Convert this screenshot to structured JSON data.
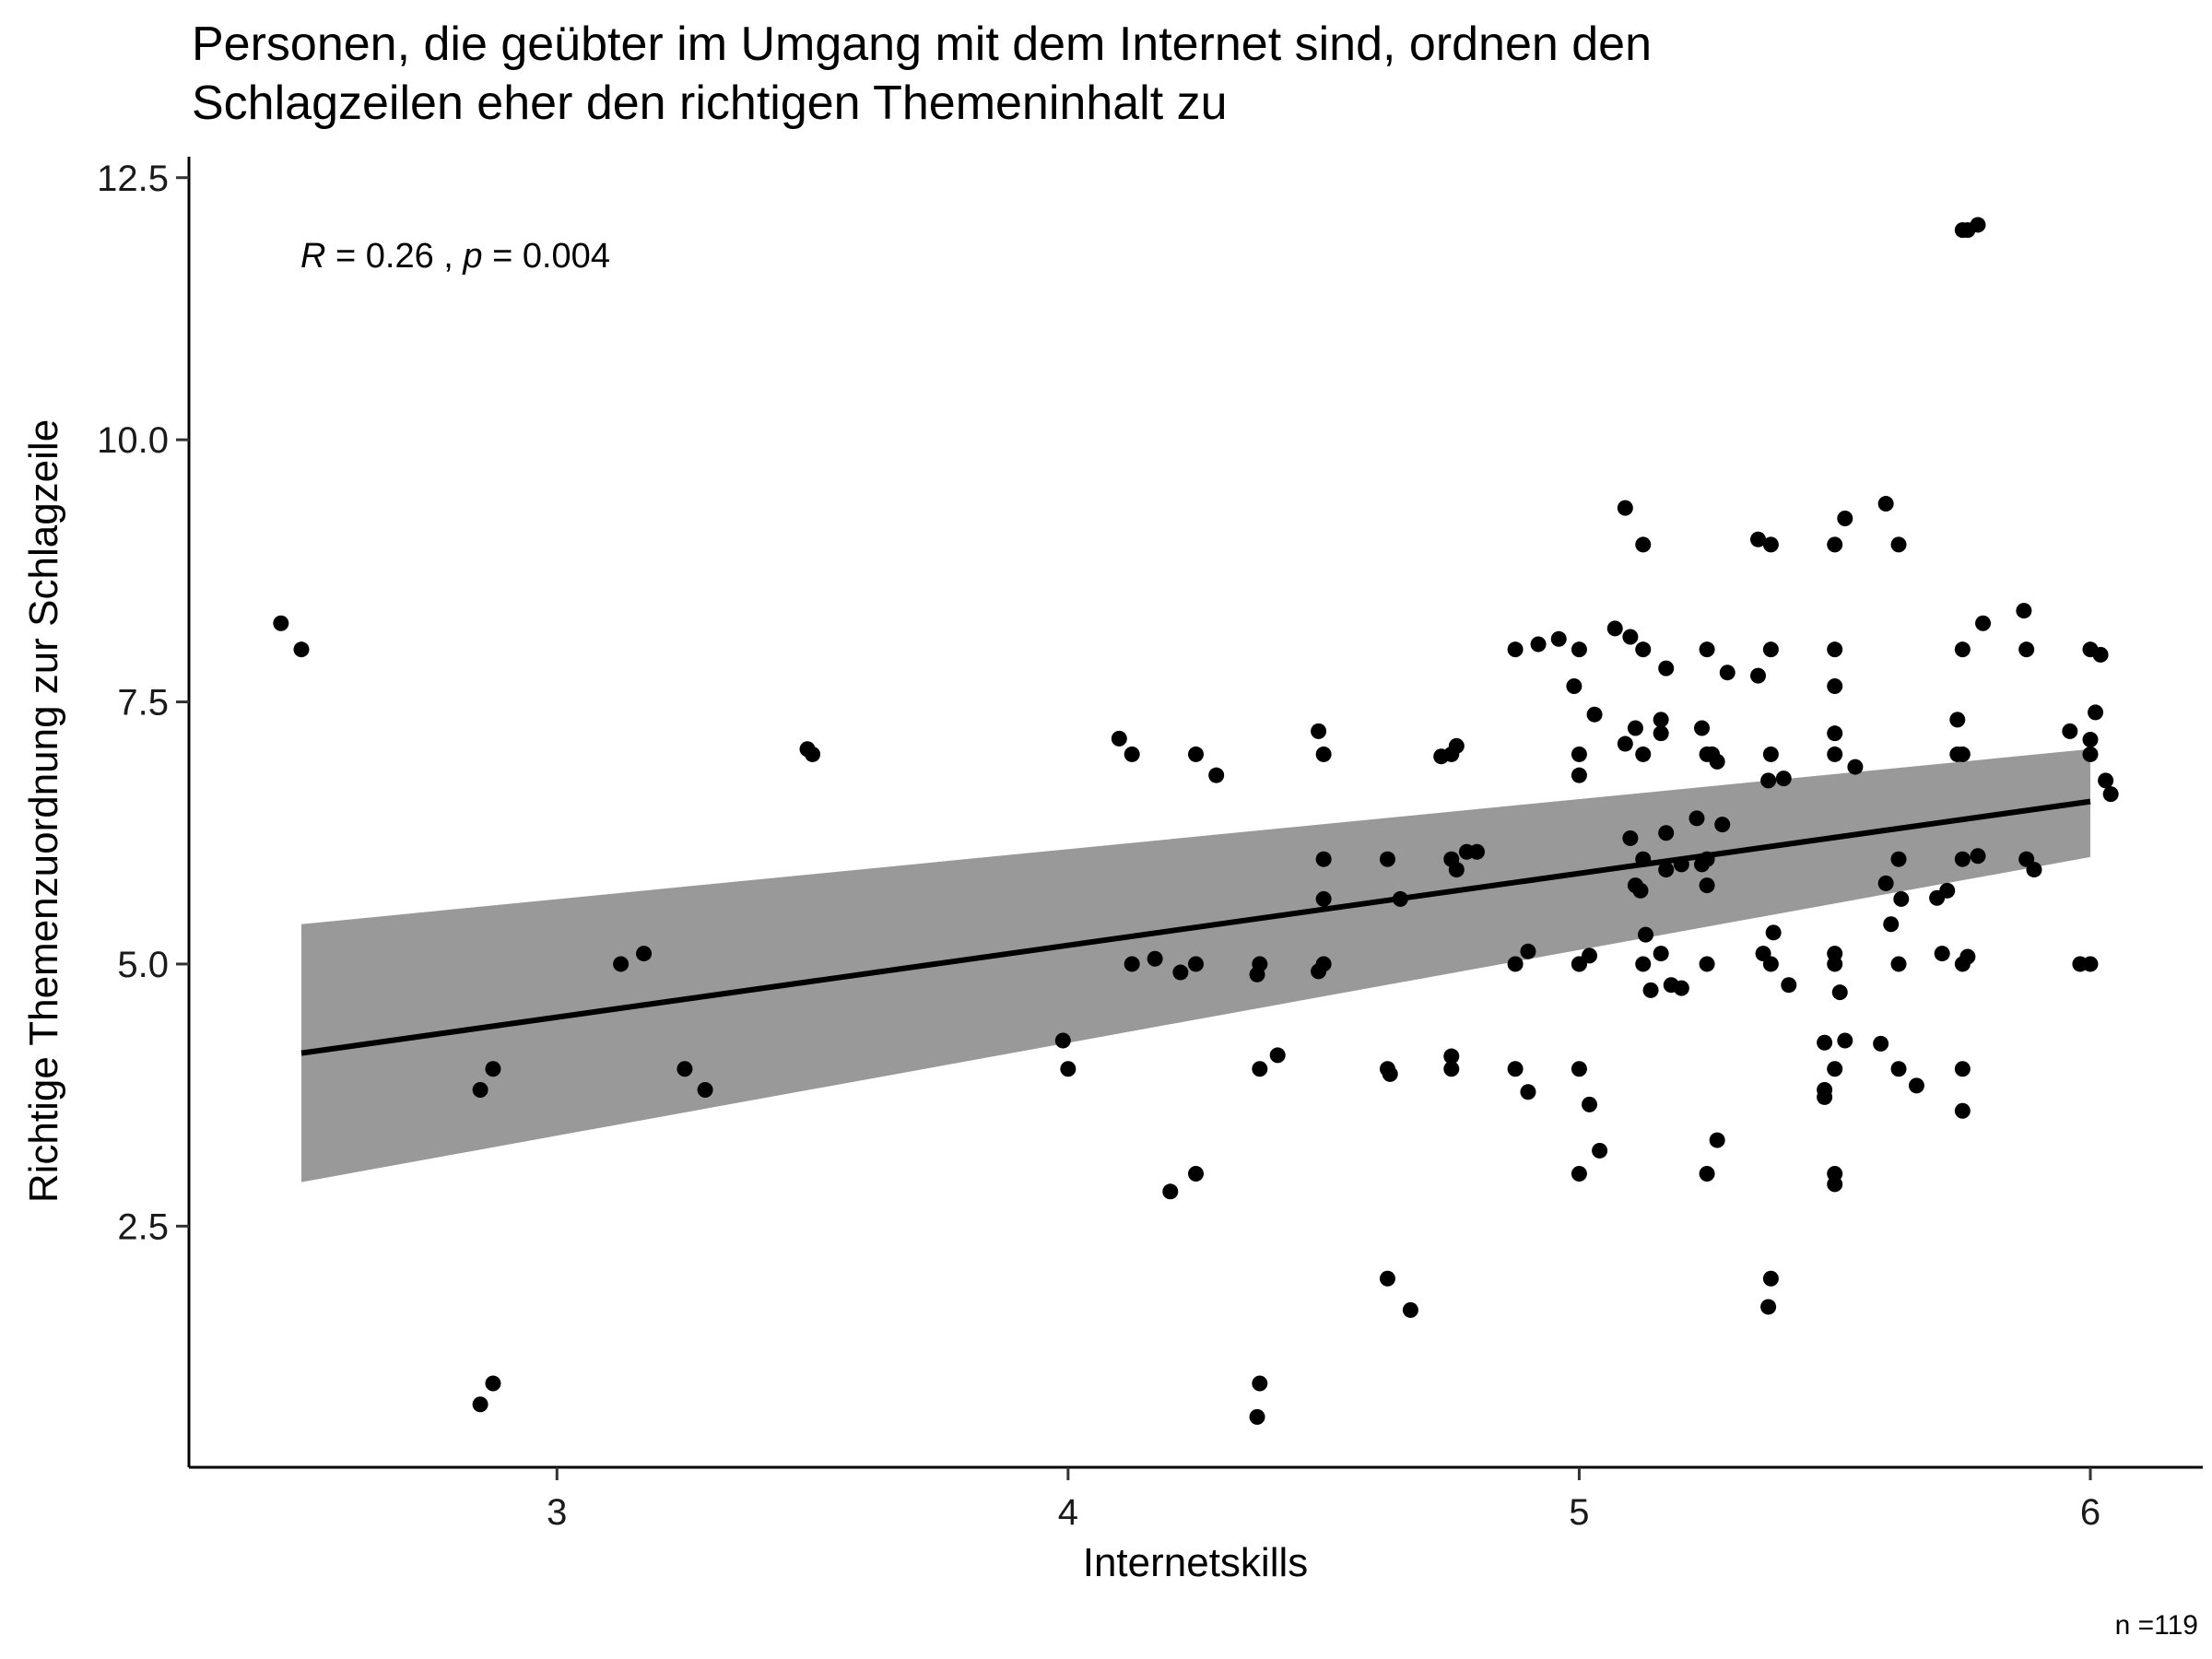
{
  "chart_data": {
    "type": "scatter",
    "title_lines": [
      "Personen, die geübter im Umgang mit dem Internet sind, ordnen den",
      "Schlagzeilen eher den richtigen Themeninhalt zu"
    ],
    "xlabel": "Internetskills",
    "ylabel": "Richtige Themenzuordnung zur Schlagzeile",
    "caption": "n =119",
    "annotation": {
      "r_sym": "R",
      "r_val": " = 0.26 , ",
      "p_sym": "p",
      "p_val": " = 0.004"
    },
    "xlim": [
      2.28,
      6.22
    ],
    "ylim": [
      0.2,
      12.7
    ],
    "x_ticks": [
      3,
      4,
      5,
      6
    ],
    "x_tick_labels": [
      "3",
      "4",
      "5",
      "6"
    ],
    "y_ticks": [
      2.5,
      5.0,
      7.5,
      10.0,
      12.5
    ],
    "y_tick_labels": [
      "2.5",
      "5.0",
      "7.5",
      "10.0",
      "12.5"
    ],
    "grid": false,
    "point_color": "#000000",
    "band_color": "#999999",
    "line_color": "#000000",
    "regression": {
      "x": [
        2.5,
        6.0
      ],
      "y": [
        4.15,
        6.55
      ]
    },
    "confidence_band": {
      "x": [
        2.5,
        6.0
      ],
      "lower": [
        2.92,
        6.02
      ],
      "upper": [
        5.38,
        7.05
      ]
    },
    "points": [
      [
        2.5,
        8
      ],
      [
        2.875,
        4
      ],
      [
        2.875,
        1
      ],
      [
        3.125,
        5
      ],
      [
        3.25,
        4
      ],
      [
        3.5,
        7
      ],
      [
        4.0,
        4
      ],
      [
        4.125,
        7
      ],
      [
        4.125,
        5
      ],
      [
        4.25,
        7
      ],
      [
        4.25,
        5
      ],
      [
        4.25,
        3
      ],
      [
        4.375,
        5
      ],
      [
        4.375,
        4
      ],
      [
        4.375,
        1
      ],
      [
        4.5,
        7
      ],
      [
        4.5,
        6
      ],
      [
        4.5,
        5
      ],
      [
        4.625,
        6
      ],
      [
        4.625,
        4
      ],
      [
        4.625,
        2
      ],
      [
        4.75,
        6
      ],
      [
        4.75,
        4
      ],
      [
        4.875,
        8
      ],
      [
        4.875,
        5
      ],
      [
        4.875,
        4
      ],
      [
        5.0,
        8
      ],
      [
        5.0,
        7
      ],
      [
        5.0,
        5
      ],
      [
        5.0,
        4
      ],
      [
        5.0,
        3
      ],
      [
        5.125,
        9
      ],
      [
        5.125,
        8
      ],
      [
        5.125,
        7
      ],
      [
        5.125,
        6
      ],
      [
        5.125,
        5
      ],
      [
        5.25,
        8
      ],
      [
        5.25,
        7
      ],
      [
        5.25,
        6
      ],
      [
        5.25,
        5
      ],
      [
        5.25,
        3
      ],
      [
        5.375,
        9
      ],
      [
        5.375,
        8
      ],
      [
        5.375,
        7
      ],
      [
        5.375,
        5
      ],
      [
        5.375,
        2
      ],
      [
        5.5,
        9
      ],
      [
        5.5,
        8
      ],
      [
        5.5,
        7
      ],
      [
        5.5,
        5
      ],
      [
        5.5,
        4
      ],
      [
        5.5,
        3
      ],
      [
        5.625,
        9
      ],
      [
        5.625,
        6
      ],
      [
        5.625,
        5
      ],
      [
        5.625,
        4
      ],
      [
        5.75,
        12
      ],
      [
        5.75,
        8
      ],
      [
        5.75,
        7
      ],
      [
        5.75,
        6
      ],
      [
        5.75,
        5
      ],
      [
        5.75,
        4
      ],
      [
        5.875,
        8
      ],
      [
        5.875,
        6
      ],
      [
        6.0,
        8
      ],
      [
        6.0,
        7
      ],
      [
        6.0,
        5
      ],
      [
        2.46,
        8.25
      ],
      [
        2.85,
        3.8
      ],
      [
        2.85,
        0.8
      ],
      [
        3.17,
        5.1
      ],
      [
        3.29,
        3.8
      ],
      [
        3.49,
        7.05
      ],
      [
        3.99,
        4.27
      ],
      [
        4.1,
        7.15
      ],
      [
        4.17,
        5.05
      ],
      [
        4.2,
        2.83
      ],
      [
        4.22,
        4.92
      ],
      [
        4.29,
        6.8
      ],
      [
        4.37,
        4.9
      ],
      [
        4.37,
        0.68
      ],
      [
        4.41,
        4.13
      ],
      [
        4.49,
        7.22
      ],
      [
        4.49,
        4.93
      ],
      [
        4.5,
        5.62
      ],
      [
        4.63,
        3.95
      ],
      [
        4.65,
        5.62
      ],
      [
        4.67,
        1.7
      ],
      [
        4.73,
        6.98
      ],
      [
        4.75,
        7.0
      ],
      [
        4.75,
        4.12
      ],
      [
        4.76,
        7.08
      ],
      [
        4.76,
        5.9
      ],
      [
        4.78,
        6.07
      ],
      [
        4.8,
        6.07
      ],
      [
        4.9,
        5.12
      ],
      [
        4.9,
        3.78
      ],
      [
        4.92,
        8.05
      ],
      [
        4.96,
        8.1
      ],
      [
        4.99,
        7.65
      ],
      [
        5.0,
        6.8
      ],
      [
        5.0,
        5.0
      ],
      [
        5.02,
        5.08
      ],
      [
        5.02,
        3.66
      ],
      [
        5.03,
        7.38
      ],
      [
        5.04,
        3.22
      ],
      [
        5.07,
        8.2
      ],
      [
        5.1,
        8.12
      ],
      [
        5.09,
        9.35
      ],
      [
        5.09,
        7.1
      ],
      [
        5.1,
        6.2
      ],
      [
        5.11,
        7.25
      ],
      [
        5.11,
        5.75
      ],
      [
        5.12,
        5.7
      ],
      [
        5.13,
        5.28
      ],
      [
        5.14,
        4.75
      ],
      [
        5.16,
        5.1
      ],
      [
        5.16,
        7.33
      ],
      [
        5.16,
        7.2
      ],
      [
        5.17,
        7.82
      ],
      [
        5.17,
        6.25
      ],
      [
        5.17,
        5.9
      ],
      [
        5.18,
        4.8
      ],
      [
        5.2,
        5.95
      ],
      [
        5.2,
        4.77
      ],
      [
        5.23,
        6.39
      ],
      [
        5.24,
        7.25
      ],
      [
        5.24,
        5.95
      ],
      [
        5.25,
        5.75
      ],
      [
        5.26,
        7.0
      ],
      [
        5.27,
        6.93
      ],
      [
        5.27,
        3.32
      ],
      [
        5.28,
        6.33
      ],
      [
        5.29,
        7.78
      ],
      [
        5.35,
        9.05
      ],
      [
        5.35,
        7.75
      ],
      [
        5.36,
        5.1
      ],
      [
        5.37,
        1.73
      ],
      [
        5.37,
        6.75
      ],
      [
        5.38,
        5.3
      ],
      [
        5.4,
        6.77
      ],
      [
        5.41,
        4.8
      ],
      [
        5.48,
        4.25
      ],
      [
        5.48,
        3.73
      ],
      [
        5.48,
        3.8
      ],
      [
        5.5,
        7.65
      ],
      [
        5.5,
        5.1
      ],
      [
        5.5,
        2.9
      ],
      [
        5.5,
        7.2
      ],
      [
        5.51,
        4.73
      ],
      [
        5.52,
        4.27
      ],
      [
        5.52,
        9.25
      ],
      [
        5.54,
        6.88
      ],
      [
        5.59,
        4.24
      ],
      [
        5.6,
        5.77
      ],
      [
        5.6,
        9.39
      ],
      [
        5.61,
        5.38
      ],
      [
        5.63,
        5.62
      ],
      [
        5.66,
        3.84
      ],
      [
        5.7,
        5.63
      ],
      [
        5.71,
        5.1
      ],
      [
        5.72,
        5.7
      ],
      [
        5.74,
        7.33
      ],
      [
        5.74,
        7.0
      ],
      [
        5.75,
        3.6
      ],
      [
        5.76,
        5.07
      ],
      [
        5.76,
        12.0
      ],
      [
        5.78,
        12.05
      ],
      [
        5.78,
        6.03
      ],
      [
        5.79,
        8.25
      ],
      [
        5.87,
        8.37
      ],
      [
        5.89,
        5.9
      ],
      [
        5.96,
        7.22
      ],
      [
        5.98,
        5.0
      ],
      [
        6.0,
        7.14
      ],
      [
        6.01,
        7.4
      ],
      [
        6.02,
        7.95
      ],
      [
        6.03,
        6.75
      ],
      [
        6.04,
        6.62
      ]
    ]
  }
}
